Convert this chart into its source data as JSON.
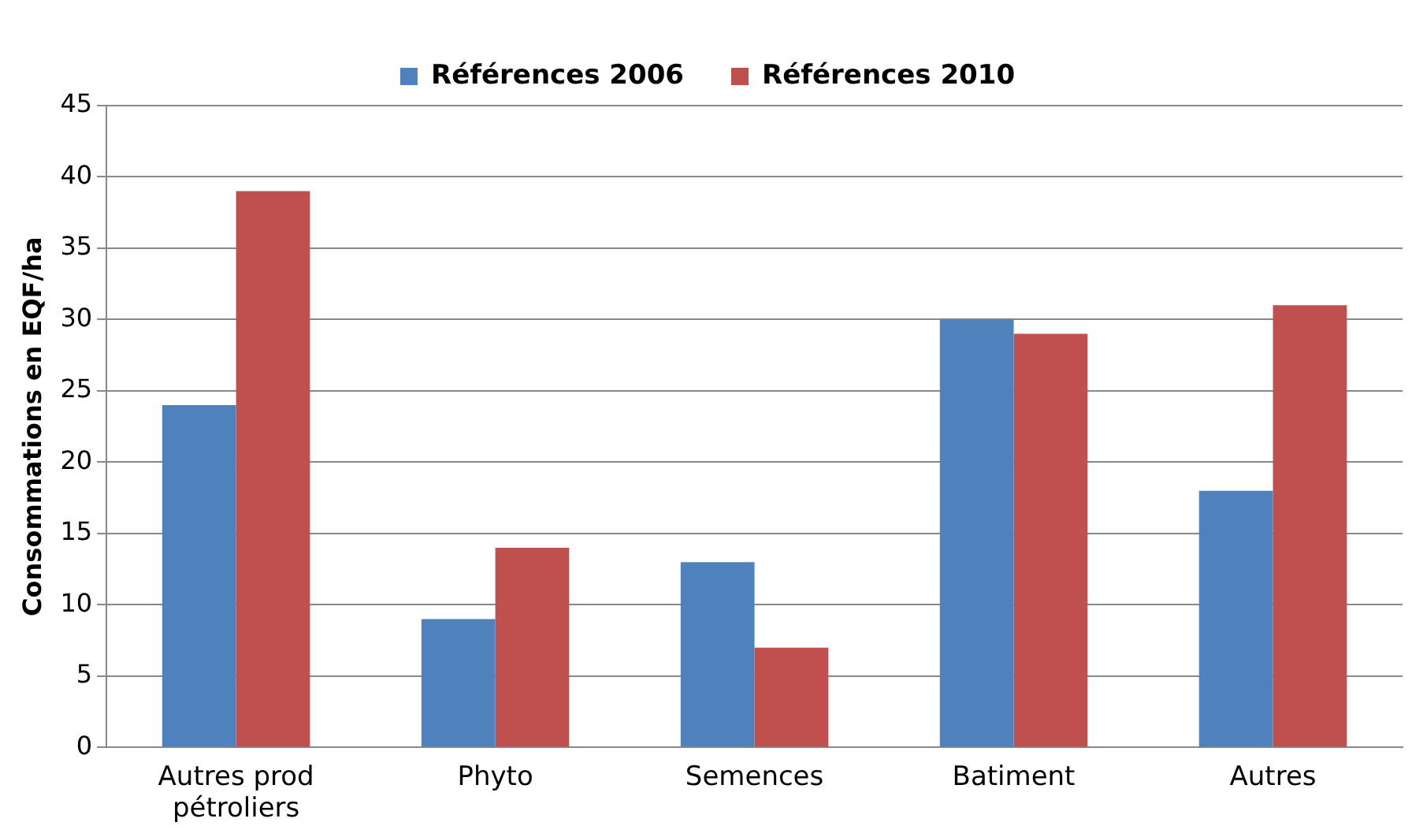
{
  "chart_data": {
    "type": "bar",
    "ylabel": "Consommations en EQF/ha",
    "categories": [
      "Autres prod\npétroliers",
      "Phyto",
      "Semences",
      "Batiment",
      "Autres"
    ],
    "series": [
      {
        "name": "Références 2006",
        "color": "#4f81bd",
        "values": [
          24,
          9,
          13,
          30,
          18
        ]
      },
      {
        "name": "Références 2010",
        "color": "#c0504d",
        "values": [
          39,
          14,
          7,
          29,
          31
        ]
      }
    ],
    "ylim": [
      0,
      45
    ],
    "yticks": [
      0,
      5,
      10,
      15,
      20,
      25,
      30,
      35,
      40,
      45
    ],
    "grid": "y",
    "legend": "top"
  }
}
